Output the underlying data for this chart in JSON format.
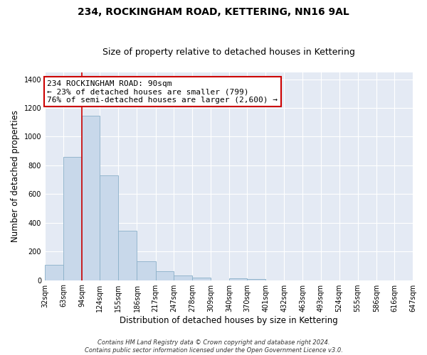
{
  "title": "234, ROCKINGHAM ROAD, KETTERING, NN16 9AL",
  "subtitle": "Size of property relative to detached houses in Kettering",
  "xlabel": "Distribution of detached houses by size in Kettering",
  "ylabel": "Number of detached properties",
  "bar_color": "#c8d8ea",
  "bar_edge_color": "#8aafc8",
  "bg_color": "#e4eaf4",
  "grid_color": "#ffffff",
  "red_line_color": "#cc0000",
  "bins": [
    32,
    63,
    94,
    124,
    155,
    186,
    217,
    247,
    278,
    309,
    340,
    370,
    401,
    432,
    463,
    493,
    524,
    555,
    586,
    616,
    647
  ],
  "bin_labels": [
    "32sqm",
    "63sqm",
    "94sqm",
    "124sqm",
    "155sqm",
    "186sqm",
    "217sqm",
    "247sqm",
    "278sqm",
    "309sqm",
    "340sqm",
    "370sqm",
    "401sqm",
    "432sqm",
    "463sqm",
    "493sqm",
    "524sqm",
    "555sqm",
    "586sqm",
    "616sqm",
    "647sqm"
  ],
  "values": [
    105,
    860,
    1145,
    730,
    345,
    130,
    62,
    33,
    20,
    0,
    15,
    8,
    0,
    0,
    0,
    0,
    0,
    0,
    0,
    0
  ],
  "ylim": [
    0,
    1450
  ],
  "yticks": [
    0,
    200,
    400,
    600,
    800,
    1000,
    1200,
    1400
  ],
  "red_line_bin_index": 2,
  "annotation_lines": [
    "234 ROCKINGHAM ROAD: 90sqm",
    "← 23% of detached houses are smaller (799)",
    "76% of semi-detached houses are larger (2,600) →"
  ],
  "footer_lines": [
    "Contains HM Land Registry data © Crown copyright and database right 2024.",
    "Contains public sector information licensed under the Open Government Licence v3.0."
  ],
  "title_fontsize": 10,
  "subtitle_fontsize": 9,
  "axis_label_fontsize": 8.5,
  "tick_fontsize": 7,
  "annotation_fontsize": 8,
  "footer_fontsize": 6
}
